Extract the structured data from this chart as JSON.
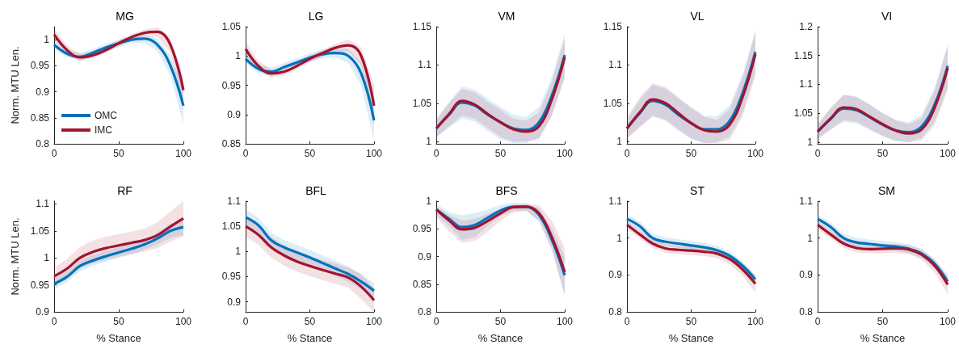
{
  "chart_data": [
    {
      "type": "line",
      "title": "MG",
      "ylabel": "Norm. MTU Len.",
      "x": [
        0,
        10,
        20,
        30,
        40,
        50,
        60,
        70,
        80,
        90,
        100
      ],
      "xlim": [
        0,
        100
      ],
      "xticks": [
        0,
        50,
        100
      ],
      "ylim": [
        0.8,
        1.025
      ],
      "yticks": [
        0.8,
        0.85,
        0.9,
        0.95,
        1
      ],
      "grid": false,
      "legend": "bottom left",
      "series": [
        {
          "name": "OMC",
          "color": "#0072bd",
          "values": [
            0.99,
            0.973,
            0.967,
            0.975,
            0.985,
            0.993,
            1.0,
            1.002,
            0.99,
            0.95,
            0.873
          ],
          "lower": [
            0.982,
            0.966,
            0.96,
            0.968,
            0.978,
            0.986,
            0.993,
            0.994,
            0.978,
            0.93,
            0.838
          ],
          "upper": [
            0.998,
            0.98,
            0.974,
            0.982,
            0.992,
            1.0,
            1.007,
            1.01,
            1.002,
            0.97,
            0.908
          ]
        },
        {
          "name": "IMC",
          "color": "#a2142f",
          "values": [
            1.01,
            0.98,
            0.966,
            0.97,
            0.98,
            0.993,
            1.005,
            1.013,
            1.015,
            0.99,
            0.903
          ],
          "lower": [
            0.998,
            0.972,
            0.959,
            0.964,
            0.974,
            0.987,
            0.999,
            1.006,
            1.005,
            0.975,
            0.878
          ],
          "upper": [
            1.022,
            0.988,
            0.973,
            0.976,
            0.986,
            0.999,
            1.011,
            1.02,
            1.024,
            1.005,
            0.928
          ]
        }
      ]
    },
    {
      "type": "line",
      "title": "LG",
      "x": [
        0,
        10,
        20,
        30,
        40,
        50,
        60,
        70,
        80,
        90,
        100
      ],
      "xlim": [
        0,
        100
      ],
      "xticks": [
        0,
        50,
        100
      ],
      "ylim": [
        0.85,
        1.05
      ],
      "yticks": [
        0.85,
        0.9,
        0.95,
        1,
        1.05
      ],
      "grid": false,
      "series": [
        {
          "color": "#0072bd",
          "values": [
            0.995,
            0.978,
            0.973,
            0.981,
            0.989,
            0.997,
            1.003,
            1.005,
            1.0,
            0.97,
            0.89
          ],
          "lower": [
            0.987,
            0.971,
            0.966,
            0.974,
            0.982,
            0.99,
            0.996,
            0.997,
            0.988,
            0.95,
            0.855
          ],
          "upper": [
            1.003,
            0.985,
            0.98,
            0.988,
            0.996,
            1.004,
            1.01,
            1.013,
            1.012,
            0.99,
            0.925
          ]
        },
        {
          "color": "#a2142f",
          "values": [
            1.012,
            0.983,
            0.97,
            0.973,
            0.983,
            0.995,
            1.005,
            1.014,
            1.018,
            1.0,
            0.915
          ],
          "lower": [
            1.0,
            0.975,
            0.963,
            0.967,
            0.977,
            0.989,
            0.999,
            1.007,
            1.008,
            0.985,
            0.88
          ],
          "upper": [
            1.024,
            0.991,
            0.977,
            0.979,
            0.989,
            1.001,
            1.011,
            1.021,
            1.028,
            1.015,
            0.95
          ]
        }
      ]
    },
    {
      "type": "line",
      "title": "VM",
      "x": [
        0,
        10,
        20,
        30,
        40,
        50,
        60,
        70,
        80,
        90,
        100
      ],
      "xlim": [
        0,
        100
      ],
      "xticks": [
        0,
        50,
        100
      ],
      "ylim": [
        0.997,
        1.15
      ],
      "yticks": [
        1,
        1.05,
        1.1,
        1.15
      ],
      "grid": false,
      "series": [
        {
          "color": "#0072bd",
          "values": [
            1.017,
            1.035,
            1.051,
            1.047,
            1.035,
            1.025,
            1.017,
            1.015,
            1.025,
            1.06,
            1.113
          ],
          "lower": [
            1.005,
            1.018,
            1.03,
            1.026,
            1.014,
            1.003,
            0.998,
            0.998,
            1.005,
            1.035,
            1.085
          ],
          "upper": [
            1.03,
            1.052,
            1.072,
            1.068,
            1.056,
            1.045,
            1.035,
            1.032,
            1.045,
            1.085,
            1.14
          ]
        },
        {
          "color": "#a2142f",
          "values": [
            1.017,
            1.036,
            1.053,
            1.048,
            1.036,
            1.025,
            1.016,
            1.013,
            1.02,
            1.055,
            1.11
          ],
          "lower": [
            1.006,
            1.02,
            1.034,
            1.03,
            1.018,
            1.006,
            1.0,
            1.0,
            1.003,
            1.033,
            1.082
          ],
          "upper": [
            1.028,
            1.05,
            1.069,
            1.064,
            1.052,
            1.041,
            1.03,
            1.027,
            1.038,
            1.078,
            1.135
          ]
        }
      ]
    },
    {
      "type": "line",
      "title": "VL",
      "x": [
        0,
        10,
        20,
        30,
        40,
        50,
        60,
        70,
        80,
        90,
        100
      ],
      "xlim": [
        0,
        100
      ],
      "xticks": [
        0,
        50,
        100
      ],
      "ylim": [
        0.997,
        1.15
      ],
      "yticks": [
        1,
        1.05,
        1.1,
        1.15
      ],
      "grid": false,
      "series": [
        {
          "color": "#0072bd",
          "values": [
            1.017,
            1.037,
            1.053,
            1.048,
            1.035,
            1.024,
            1.016,
            1.016,
            1.027,
            1.063,
            1.117
          ],
          "lower": [
            1.005,
            1.02,
            1.032,
            1.027,
            1.014,
            1.003,
            0.998,
            0.999,
            1.007,
            1.038,
            1.09
          ],
          "upper": [
            1.03,
            1.054,
            1.074,
            1.069,
            1.056,
            1.045,
            1.034,
            1.033,
            1.047,
            1.088,
            1.145
          ]
        },
        {
          "color": "#a2142f",
          "values": [
            1.017,
            1.038,
            1.055,
            1.05,
            1.037,
            1.024,
            1.015,
            1.013,
            1.022,
            1.058,
            1.114
          ],
          "lower": [
            1.003,
            1.018,
            1.034,
            1.029,
            1.016,
            1.004,
            0.998,
            0.998,
            1.002,
            1.033,
            1.085
          ],
          "upper": [
            1.031,
            1.058,
            1.076,
            1.071,
            1.058,
            1.044,
            1.032,
            1.028,
            1.042,
            1.083,
            1.143
          ]
        }
      ]
    },
    {
      "type": "line",
      "title": "VI",
      "x": [
        0,
        10,
        20,
        30,
        40,
        50,
        60,
        70,
        80,
        90,
        100
      ],
      "xlim": [
        0,
        100
      ],
      "xticks": [
        0,
        50,
        100
      ],
      "ylim": [
        0.997,
        1.2
      ],
      "yticks": [
        1,
        1.05,
        1.1,
        1.15,
        1.2
      ],
      "grid": false,
      "series": [
        {
          "color": "#0072bd",
          "values": [
            1.018,
            1.04,
            1.058,
            1.055,
            1.043,
            1.03,
            1.02,
            1.017,
            1.027,
            1.065,
            1.132
          ],
          "lower": [
            1.006,
            1.022,
            1.035,
            1.032,
            1.021,
            1.01,
            1.002,
            1.0,
            1.007,
            1.035,
            1.095
          ],
          "upper": [
            1.03,
            1.058,
            1.082,
            1.078,
            1.065,
            1.05,
            1.038,
            1.034,
            1.047,
            1.095,
            1.17
          ]
        },
        {
          "color": "#a2142f",
          "values": [
            1.018,
            1.041,
            1.06,
            1.057,
            1.044,
            1.031,
            1.02,
            1.015,
            1.022,
            1.06,
            1.128
          ],
          "lower": [
            1.005,
            1.022,
            1.038,
            1.035,
            1.023,
            1.011,
            1.002,
            0.999,
            1.003,
            1.03,
            1.09
          ],
          "upper": [
            1.031,
            1.06,
            1.082,
            1.079,
            1.065,
            1.051,
            1.038,
            1.031,
            1.041,
            1.09,
            1.165
          ]
        }
      ]
    },
    {
      "type": "line",
      "title": "RF",
      "xlabel": "% Stance",
      "ylabel": "Norm. MTU Len.",
      "x": [
        0,
        10,
        20,
        30,
        40,
        50,
        60,
        70,
        80,
        90,
        100
      ],
      "xlim": [
        0,
        100
      ],
      "xticks": [
        0,
        50,
        100
      ],
      "ylim": [
        0.9,
        1.105
      ],
      "yticks": [
        0.9,
        0.95,
        1,
        1.05,
        1.1
      ],
      "grid": false,
      "series": [
        {
          "color": "#0072bd",
          "values": [
            0.952,
            0.965,
            0.985,
            0.995,
            1.003,
            1.01,
            1.017,
            1.025,
            1.036,
            1.05,
            1.057
          ],
          "lower": [
            0.942,
            0.955,
            0.975,
            0.985,
            0.993,
            1.0,
            1.007,
            1.015,
            1.025,
            1.037,
            1.042
          ],
          "upper": [
            0.962,
            0.975,
            0.995,
            1.005,
            1.013,
            1.02,
            1.027,
            1.035,
            1.047,
            1.063,
            1.072
          ]
        },
        {
          "color": "#a2142f",
          "values": [
            0.966,
            0.98,
            1.0,
            1.011,
            1.018,
            1.023,
            1.028,
            1.033,
            1.042,
            1.058,
            1.073
          ],
          "lower": [
            0.95,
            0.962,
            0.98,
            0.99,
            0.997,
            1.002,
            1.007,
            1.012,
            1.018,
            1.03,
            1.04
          ],
          "upper": [
            0.982,
            0.998,
            1.02,
            1.032,
            1.039,
            1.044,
            1.049,
            1.054,
            1.066,
            1.086,
            1.105
          ]
        }
      ]
    },
    {
      "type": "line",
      "title": "BFL",
      "xlabel": "% Stance",
      "x": [
        0,
        10,
        20,
        30,
        40,
        50,
        60,
        70,
        80,
        90,
        100
      ],
      "xlim": [
        0,
        100
      ],
      "xticks": [
        0,
        50,
        100
      ],
      "ylim": [
        0.88,
        1.1
      ],
      "yticks": [
        0.9,
        0.95,
        1,
        1.05,
        1.1
      ],
      "grid": false,
      "series": [
        {
          "color": "#0072bd",
          "values": [
            1.068,
            1.052,
            1.022,
            1.008,
            0.998,
            0.988,
            0.977,
            0.966,
            0.955,
            0.94,
            0.922
          ],
          "lower": [
            1.053,
            1.037,
            1.007,
            0.993,
            0.983,
            0.973,
            0.962,
            0.951,
            0.94,
            0.925,
            0.907
          ],
          "upper": [
            1.083,
            1.067,
            1.037,
            1.023,
            1.013,
            1.003,
            0.992,
            0.981,
            0.97,
            0.955,
            0.937
          ]
        },
        {
          "color": "#a2142f",
          "values": [
            1.05,
            1.033,
            1.008,
            0.992,
            0.98,
            0.971,
            0.963,
            0.956,
            0.948,
            0.93,
            0.903
          ],
          "lower": [
            1.03,
            1.013,
            0.988,
            0.972,
            0.96,
            0.951,
            0.943,
            0.936,
            0.928,
            0.905,
            0.88
          ],
          "upper": [
            1.07,
            1.053,
            1.028,
            1.012,
            1.0,
            0.991,
            0.983,
            0.976,
            0.968,
            0.955,
            0.926
          ]
        }
      ]
    },
    {
      "type": "line",
      "title": "BFS",
      "xlabel": "% Stance",
      "x": [
        0,
        10,
        20,
        30,
        40,
        50,
        60,
        70,
        80,
        90,
        100
      ],
      "xlim": [
        0,
        100
      ],
      "xticks": [
        0,
        50,
        100
      ],
      "ylim": [
        0.8,
        1
      ],
      "yticks": [
        0.8,
        0.85,
        0.9,
        0.95,
        1
      ],
      "grid": false,
      "series": [
        {
          "color": "#0072bd",
          "values": [
            0.985,
            0.968,
            0.953,
            0.957,
            0.97,
            0.983,
            0.99,
            0.99,
            0.975,
            0.93,
            0.866
          ],
          "lower": [
            0.975,
            0.955,
            0.93,
            0.935,
            0.955,
            0.973,
            0.983,
            0.983,
            0.963,
            0.91,
            0.83
          ],
          "upper": [
            0.995,
            0.98,
            0.975,
            0.978,
            0.985,
            0.993,
            0.997,
            0.997,
            0.987,
            0.95,
            0.9
          ]
        },
        {
          "color": "#a2142f",
          "values": [
            0.985,
            0.965,
            0.949,
            0.952,
            0.964,
            0.978,
            0.989,
            0.99,
            0.978,
            0.935,
            0.872
          ],
          "lower": [
            0.972,
            0.945,
            0.925,
            0.928,
            0.945,
            0.965,
            0.98,
            0.982,
            0.965,
            0.915,
            0.83
          ],
          "upper": [
            0.99,
            0.975,
            0.965,
            0.968,
            0.977,
            0.986,
            0.993,
            0.995,
            0.993,
            0.965,
            0.915
          ]
        }
      ]
    },
    {
      "type": "line",
      "title": "ST",
      "xlabel": "% Stance",
      "x": [
        0,
        10,
        20,
        30,
        40,
        50,
        60,
        70,
        80,
        90,
        100
      ],
      "xlim": [
        0,
        100
      ],
      "xticks": [
        0,
        50,
        100
      ],
      "ylim": [
        0.8,
        1.1
      ],
      "yticks": [
        0.8,
        0.9,
        1,
        1.1
      ],
      "grid": false,
      "series": [
        {
          "color": "#0072bd",
          "values": [
            1.052,
            1.032,
            1.0,
            0.99,
            0.985,
            0.98,
            0.975,
            0.967,
            0.952,
            0.925,
            0.888
          ],
          "lower": [
            1.04,
            1.02,
            0.988,
            0.978,
            0.973,
            0.968,
            0.963,
            0.955,
            0.94,
            0.913,
            0.876
          ],
          "upper": [
            1.064,
            1.044,
            1.012,
            1.002,
            0.997,
            0.992,
            0.987,
            0.979,
            0.964,
            0.937,
            0.9
          ]
        },
        {
          "color": "#a2142f",
          "values": [
            1.036,
            1.01,
            0.985,
            0.972,
            0.968,
            0.966,
            0.963,
            0.958,
            0.943,
            0.915,
            0.876
          ],
          "lower": [
            1.024,
            0.998,
            0.973,
            0.96,
            0.956,
            0.954,
            0.951,
            0.946,
            0.929,
            0.898,
            0.853
          ],
          "upper": [
            1.048,
            1.022,
            0.997,
            0.984,
            0.98,
            0.978,
            0.975,
            0.97,
            0.957,
            0.932,
            0.899
          ]
        }
      ]
    },
    {
      "type": "line",
      "title": "SM",
      "xlabel": "% Stance",
      "x": [
        0,
        10,
        20,
        30,
        40,
        50,
        60,
        70,
        80,
        90,
        100
      ],
      "xlim": [
        0,
        100
      ],
      "xticks": [
        0,
        50,
        100
      ],
      "ylim": [
        0.8,
        1.1
      ],
      "yticks": [
        0.8,
        0.9,
        1,
        1.1
      ],
      "grid": false,
      "series": [
        {
          "color": "#0072bd",
          "values": [
            1.052,
            1.03,
            1.0,
            0.988,
            0.984,
            0.98,
            0.977,
            0.971,
            0.958,
            0.93,
            0.882
          ],
          "lower": [
            1.04,
            1.018,
            0.988,
            0.976,
            0.972,
            0.968,
            0.965,
            0.959,
            0.946,
            0.918,
            0.87
          ],
          "upper": [
            1.064,
            1.042,
            1.012,
            1.0,
            0.996,
            0.992,
            0.989,
            0.983,
            0.97,
            0.942,
            0.894
          ]
        },
        {
          "color": "#a2142f",
          "values": [
            1.036,
            1.01,
            0.985,
            0.973,
            0.97,
            0.971,
            0.972,
            0.969,
            0.955,
            0.925,
            0.874
          ],
          "lower": [
            1.024,
            0.998,
            0.973,
            0.961,
            0.958,
            0.959,
            0.96,
            0.957,
            0.941,
            0.907,
            0.848
          ],
          "upper": [
            1.048,
            1.022,
            0.997,
            0.985,
            0.982,
            0.983,
            0.984,
            0.981,
            0.969,
            0.943,
            0.9
          ]
        }
      ]
    }
  ]
}
